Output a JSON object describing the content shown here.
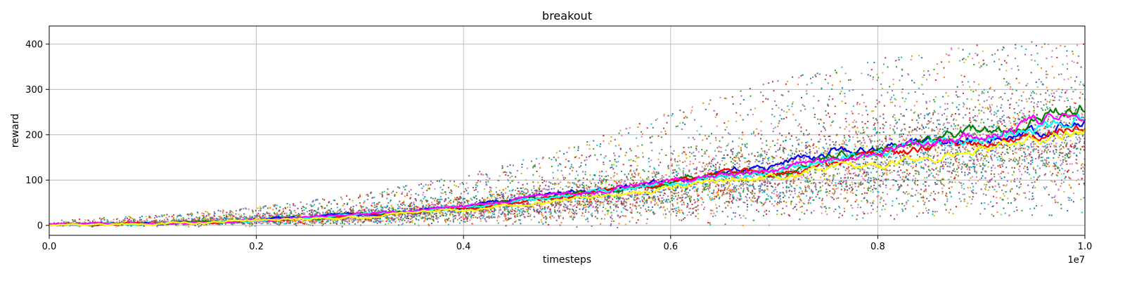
{
  "chart_data": {
    "type": "scatter",
    "title": "breakout",
    "xlabel": "timesteps",
    "ylabel": "reward",
    "x_offset_label": "1e7",
    "xlim": [
      0.0,
      1.0
    ],
    "ylim": [
      -22,
      440
    ],
    "x_ticks": [
      0.0,
      0.2,
      0.4,
      0.6,
      0.8,
      1.0
    ],
    "x_tick_labels": [
      "0.0",
      "0.2",
      "0.4",
      "0.6",
      "0.8",
      "1.0"
    ],
    "y_ticks": [
      0,
      100,
      200,
      300,
      400
    ],
    "y_tick_labels": [
      "0",
      "100",
      "200",
      "300",
      "400"
    ],
    "grid": true,
    "legend": "none",
    "point_colors": [
      "#1f77b4",
      "#ff7f0e",
      "#2ca02c",
      "#d62728",
      "#9467bd",
      "#8c564b",
      "#e377c2",
      "#7f7f7f",
      "#bcbd22",
      "#17becf"
    ],
    "scatter_envelope": {
      "x": [
        0.0,
        0.1,
        0.2,
        0.3,
        0.4,
        0.5,
        0.6,
        0.7,
        0.8,
        0.9,
        1.0
      ],
      "low": [
        0,
        0,
        2,
        5,
        8,
        12,
        18,
        22,
        20,
        20,
        20
      ],
      "mid": [
        2,
        5,
        12,
        22,
        35,
        55,
        80,
        110,
        140,
        170,
        200
      ],
      "high": [
        12,
        22,
        40,
        70,
        110,
        170,
        250,
        320,
        370,
        400,
        410
      ]
    },
    "smoothed_series": [
      {
        "color": "#0000ff",
        "x": [
          0.0,
          0.1,
          0.2,
          0.3,
          0.4,
          0.45,
          0.5,
          0.55,
          0.6,
          0.65,
          0.7,
          0.75,
          0.8,
          0.85,
          0.9,
          0.95,
          1.0
        ],
        "y": [
          2,
          4,
          12,
          25,
          42,
          58,
          72,
          87,
          98,
          120,
          130,
          160,
          175,
          180,
          195,
          200,
          240
        ]
      },
      {
        "color": "#008000",
        "x": [
          0.0,
          0.1,
          0.2,
          0.3,
          0.4,
          0.45,
          0.5,
          0.55,
          0.6,
          0.65,
          0.7,
          0.75,
          0.8,
          0.85,
          0.9,
          0.95,
          1.0
        ],
        "y": [
          2,
          4,
          11,
          24,
          40,
          55,
          68,
          82,
          96,
          112,
          120,
          145,
          170,
          190,
          210,
          230,
          265
        ]
      },
      {
        "color": "#ff0000",
        "x": [
          0.0,
          0.1,
          0.2,
          0.3,
          0.4,
          0.45,
          0.5,
          0.55,
          0.6,
          0.65,
          0.7,
          0.75,
          0.8,
          0.85,
          0.9,
          0.95,
          1.0
        ],
        "y": [
          2,
          4,
          11,
          23,
          38,
          52,
          66,
          80,
          92,
          110,
          118,
          130,
          155,
          170,
          180,
          200,
          230
        ]
      },
      {
        "color": "#00ffff",
        "x": [
          0.0,
          0.1,
          0.2,
          0.3,
          0.4,
          0.45,
          0.5,
          0.55,
          0.6,
          0.65,
          0.7,
          0.75,
          0.8,
          0.85,
          0.9,
          0.95,
          1.0
        ],
        "y": [
          2,
          4,
          11,
          23,
          39,
          53,
          67,
          80,
          94,
          108,
          118,
          140,
          160,
          175,
          195,
          215,
          235
        ]
      },
      {
        "color": "#ff00ff",
        "x": [
          0.0,
          0.1,
          0.2,
          0.3,
          0.4,
          0.45,
          0.5,
          0.55,
          0.6,
          0.65,
          0.7,
          0.75,
          0.8,
          0.85,
          0.9,
          0.95,
          1.0
        ],
        "y": [
          2,
          4,
          12,
          24,
          40,
          55,
          70,
          86,
          98,
          112,
          125,
          145,
          165,
          180,
          200,
          225,
          255
        ]
      },
      {
        "color": "#ffff00",
        "x": [
          0.0,
          0.1,
          0.2,
          0.3,
          0.4,
          0.45,
          0.5,
          0.55,
          0.6,
          0.65,
          0.7,
          0.75,
          0.8,
          0.85,
          0.9,
          0.95,
          1.0
        ],
        "y": [
          1,
          3,
          10,
          20,
          35,
          45,
          58,
          68,
          80,
          95,
          105,
          125,
          135,
          150,
          165,
          190,
          215
        ]
      }
    ]
  }
}
